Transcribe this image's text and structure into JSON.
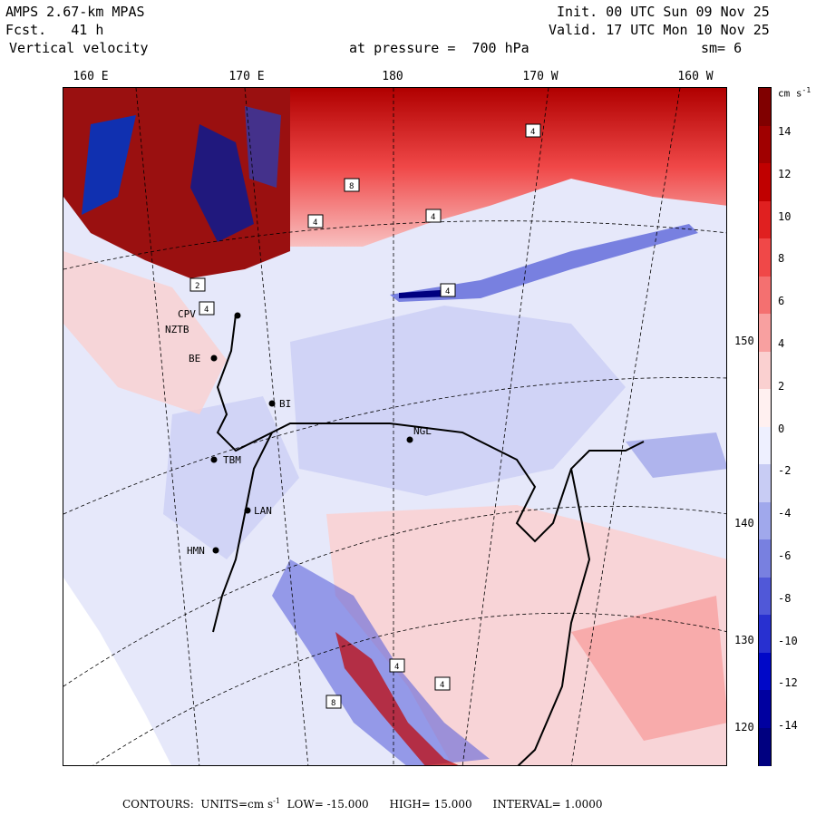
{
  "header": {
    "model": "AMPS 2.67-km MPAS",
    "fcst_label": "Fcst.",
    "fcst_value": "41 h",
    "field": "Vertical velocity",
    "init": "Init. 00 UTC Sun 09 Nov 25",
    "valid": "Valid. 17 UTC Mon 10 Nov 25",
    "pressure_label": "at pressure =",
    "pressure_value": "700 hPa",
    "smooth": "sm= 6"
  },
  "longitude_labels": [
    "160 E",
    "170 E",
    "180",
    "170 W",
    "160 W"
  ],
  "latitude_labels": [
    "150 W",
    "140 W",
    "130 W",
    "120 W"
  ],
  "stations": [
    "CPV",
    "NZTB",
    "BE",
    "BI",
    "NGL",
    "TBM",
    "LAN",
    "HMN"
  ],
  "colorbar": {
    "unit": "cm s",
    "unit_exp": "-1",
    "ticks": [
      "14",
      "12",
      "10",
      "8",
      "6",
      "4",
      "2",
      "0",
      "-2",
      "-4",
      "-6",
      "-8",
      "-10",
      "-12",
      "-14"
    ],
    "colors": [
      "#800000",
      "#a00000",
      "#c00000",
      "#e02020",
      "#f04848",
      "#f47070",
      "#f8a0a0",
      "#fad0d0",
      "#fff0f0",
      "#eef0ff",
      "#c8ccf4",
      "#a0a8ec",
      "#7880e0",
      "#5058d8",
      "#2830d0",
      "#0008c8",
      "#0000a0",
      "#000080"
    ]
  },
  "footer": {
    "contours": "CONTOURS:",
    "units_label": "UNITS=cm s",
    "units_exp": "-1",
    "low": "LOW= -15.000",
    "high": "HIGH= 15.000",
    "interval": "INTERVAL= 1.0000"
  }
}
